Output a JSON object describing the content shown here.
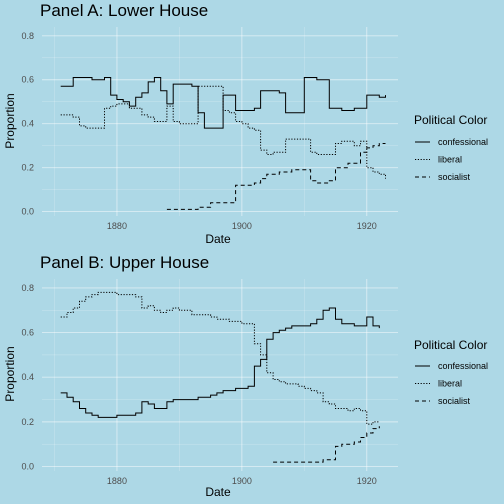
{
  "chart_data": [
    {
      "type": "line",
      "title": "Panel A: Lower House",
      "xlabel": "Date",
      "ylabel": "Proportion",
      "xlim": [
        1868,
        1925
      ],
      "ylim": [
        -0.02,
        0.84
      ],
      "x_ticks": [
        1880,
        1900,
        1920
      ],
      "y_ticks": [
        0.0,
        0.2,
        0.4,
        0.6,
        0.8
      ],
      "y_tick_labels": [
        "0.0",
        "0.2",
        "0.4",
        "0.6",
        "0.8"
      ],
      "grid": true,
      "legend": {
        "title": "Political Color",
        "position": "right"
      },
      "series": [
        {
          "name": "confessional",
          "dash": "solid",
          "x": [
            1871,
            1872,
            1873,
            1874,
            1875,
            1876,
            1877,
            1878,
            1879,
            1880,
            1881,
            1882,
            1883,
            1884,
            1885,
            1886,
            1887,
            1888,
            1889,
            1890,
            1891,
            1892,
            1893,
            1894,
            1895,
            1896,
            1897,
            1898,
            1899,
            1900,
            1901,
            1902,
            1903,
            1904,
            1905,
            1906,
            1907,
            1908,
            1909,
            1910,
            1911,
            1912,
            1913,
            1914,
            1915,
            1916,
            1917,
            1918,
            1919,
            1920,
            1921,
            1922,
            1923
          ],
          "y": [
            0.57,
            0.57,
            0.61,
            0.61,
            0.61,
            0.6,
            0.6,
            0.61,
            0.53,
            0.51,
            0.5,
            0.48,
            0.52,
            0.54,
            0.59,
            0.61,
            0.55,
            0.49,
            0.58,
            0.58,
            0.58,
            0.57,
            0.45,
            0.38,
            0.38,
            0.38,
            0.53,
            0.53,
            0.46,
            0.46,
            0.46,
            0.47,
            0.55,
            0.55,
            0.55,
            0.54,
            0.45,
            0.45,
            0.45,
            0.61,
            0.61,
            0.6,
            0.6,
            0.47,
            0.47,
            0.46,
            0.46,
            0.47,
            0.47,
            0.53,
            0.53,
            0.52,
            0.53
          ]
        },
        {
          "name": "liberal",
          "dash": "dotted",
          "x": [
            1871,
            1872,
            1873,
            1874,
            1875,
            1876,
            1877,
            1878,
            1879,
            1880,
            1881,
            1882,
            1883,
            1884,
            1885,
            1886,
            1887,
            1888,
            1889,
            1890,
            1891,
            1892,
            1893,
            1894,
            1895,
            1896,
            1897,
            1898,
            1899,
            1900,
            1901,
            1902,
            1903,
            1904,
            1905,
            1906,
            1907,
            1908,
            1909,
            1910,
            1911,
            1912,
            1913,
            1914,
            1915,
            1916,
            1917,
            1918,
            1919,
            1920,
            1921,
            1922,
            1923
          ],
          "y": [
            0.44,
            0.44,
            0.43,
            0.39,
            0.38,
            0.38,
            0.38,
            0.47,
            0.48,
            0.49,
            0.49,
            0.47,
            0.47,
            0.44,
            0.43,
            0.41,
            0.41,
            0.48,
            0.41,
            0.4,
            0.4,
            0.4,
            0.57,
            0.57,
            0.57,
            0.57,
            0.46,
            0.45,
            0.41,
            0.4,
            0.38,
            0.37,
            0.28,
            0.26,
            0.27,
            0.27,
            0.33,
            0.33,
            0.33,
            0.33,
            0.27,
            0.26,
            0.26,
            0.26,
            0.31,
            0.32,
            0.32,
            0.3,
            0.32,
            0.2,
            0.18,
            0.17,
            0.15
          ]
        },
        {
          "name": "socialist",
          "dash": "dashed",
          "x": [
            1888,
            1889,
            1890,
            1891,
            1892,
            1893,
            1894,
            1895,
            1896,
            1897,
            1898,
            1899,
            1900,
            1901,
            1902,
            1903,
            1904,
            1905,
            1906,
            1907,
            1908,
            1909,
            1910,
            1911,
            1912,
            1913,
            1914,
            1915,
            1916,
            1917,
            1918,
            1919,
            1920,
            1921,
            1922,
            1923
          ],
          "y": [
            0.01,
            0.01,
            0.01,
            0.01,
            0.01,
            0.02,
            0.02,
            0.04,
            0.04,
            0.04,
            0.04,
            0.12,
            0.12,
            0.12,
            0.13,
            0.15,
            0.17,
            0.17,
            0.18,
            0.18,
            0.19,
            0.19,
            0.19,
            0.14,
            0.13,
            0.13,
            0.14,
            0.2,
            0.2,
            0.22,
            0.22,
            0.27,
            0.29,
            0.3,
            0.31,
            0.31
          ]
        }
      ]
    },
    {
      "type": "line",
      "title": "Panel B: Upper House",
      "xlabel": "Date",
      "ylabel": "Proportion",
      "xlim": [
        1868,
        1925
      ],
      "ylim": [
        -0.02,
        0.84
      ],
      "x_ticks": [
        1880,
        1900,
        1920
      ],
      "y_ticks": [
        0.0,
        0.2,
        0.4,
        0.6,
        0.8
      ],
      "y_tick_labels": [
        "0.0",
        "0.2",
        "0.4",
        "0.6",
        "0.8"
      ],
      "grid": true,
      "legend": {
        "title": "Political Color",
        "position": "right"
      },
      "series": [
        {
          "name": "confessional",
          "dash": "solid",
          "x": [
            1871,
            1872,
            1873,
            1874,
            1875,
            1876,
            1877,
            1878,
            1879,
            1880,
            1881,
            1882,
            1883,
            1884,
            1885,
            1886,
            1887,
            1888,
            1889,
            1890,
            1891,
            1892,
            1893,
            1894,
            1895,
            1896,
            1897,
            1898,
            1899,
            1900,
            1901,
            1902,
            1903,
            1904,
            1905,
            1906,
            1907,
            1908,
            1909,
            1910,
            1911,
            1912,
            1913,
            1914,
            1915,
            1916,
            1917,
            1918,
            1919,
            1920,
            1921,
            1922
          ],
          "y": [
            0.33,
            0.31,
            0.29,
            0.26,
            0.24,
            0.23,
            0.22,
            0.22,
            0.22,
            0.23,
            0.23,
            0.23,
            0.24,
            0.29,
            0.28,
            0.26,
            0.26,
            0.29,
            0.3,
            0.3,
            0.3,
            0.3,
            0.31,
            0.31,
            0.32,
            0.33,
            0.34,
            0.34,
            0.35,
            0.35,
            0.36,
            0.45,
            0.48,
            0.57,
            0.6,
            0.61,
            0.62,
            0.63,
            0.63,
            0.63,
            0.64,
            0.66,
            0.7,
            0.71,
            0.66,
            0.64,
            0.64,
            0.63,
            0.63,
            0.67,
            0.63,
            0.62
          ]
        },
        {
          "name": "liberal",
          "dash": "dotted",
          "x": [
            1871,
            1872,
            1873,
            1874,
            1875,
            1876,
            1877,
            1878,
            1879,
            1880,
            1881,
            1882,
            1883,
            1884,
            1885,
            1886,
            1887,
            1888,
            1889,
            1890,
            1891,
            1892,
            1893,
            1894,
            1895,
            1896,
            1897,
            1898,
            1899,
            1900,
            1901,
            1902,
            1903,
            1904,
            1905,
            1906,
            1907,
            1908,
            1909,
            1910,
            1911,
            1912,
            1913,
            1914,
            1915,
            1916,
            1917,
            1918,
            1919,
            1920,
            1921,
            1922
          ],
          "y": [
            0.67,
            0.69,
            0.71,
            0.74,
            0.76,
            0.77,
            0.78,
            0.78,
            0.78,
            0.77,
            0.77,
            0.77,
            0.76,
            0.71,
            0.72,
            0.7,
            0.69,
            0.7,
            0.71,
            0.7,
            0.7,
            0.68,
            0.68,
            0.68,
            0.67,
            0.66,
            0.66,
            0.65,
            0.65,
            0.64,
            0.64,
            0.55,
            0.5,
            0.42,
            0.39,
            0.38,
            0.37,
            0.37,
            0.36,
            0.35,
            0.34,
            0.33,
            0.29,
            0.28,
            0.26,
            0.26,
            0.25,
            0.26,
            0.25,
            0.19,
            0.2,
            0.2
          ]
        },
        {
          "name": "socialist",
          "dash": "dashed",
          "x": [
            1905,
            1906,
            1907,
            1908,
            1909,
            1910,
            1911,
            1912,
            1913,
            1914,
            1915,
            1916,
            1917,
            1918,
            1919,
            1920,
            1921,
            1922
          ],
          "y": [
            0.02,
            0.02,
            0.02,
            0.02,
            0.02,
            0.02,
            0.02,
            0.02,
            0.03,
            0.03,
            0.09,
            0.1,
            0.1,
            0.11,
            0.13,
            0.15,
            0.17,
            0.18
          ]
        }
      ]
    }
  ]
}
